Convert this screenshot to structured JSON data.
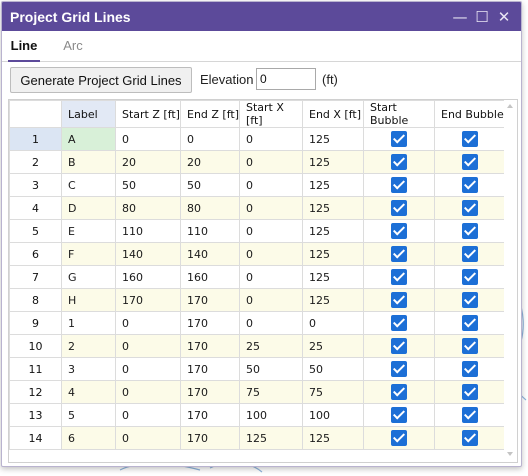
{
  "window": {
    "title": "Project Grid Lines",
    "controls": {
      "minimize": "—",
      "maximize": "☐",
      "close": "✕"
    }
  },
  "tabs": [
    {
      "label": "Line",
      "active": true
    },
    {
      "label": "Arc",
      "active": false
    }
  ],
  "toolbar": {
    "generate_label": "Generate Project Grid Lines",
    "elevation_label": "Elevation",
    "elevation_value": "0",
    "unit_label": "(ft)"
  },
  "grid": {
    "columns": [
      "Label",
      "Start Z [ft]",
      "End Z [ft]",
      "Start X [ft]",
      "End X [ft]",
      "Start Bubble",
      "End Bubble"
    ],
    "rows": [
      {
        "num": "1",
        "label": "A",
        "start_z": "0",
        "end_z": "0",
        "start_x": "0",
        "end_x": "125",
        "start_bubble": true,
        "end_bubble": true
      },
      {
        "num": "2",
        "label": "B",
        "start_z": "20",
        "end_z": "20",
        "start_x": "0",
        "end_x": "125",
        "start_bubble": true,
        "end_bubble": true
      },
      {
        "num": "3",
        "label": "C",
        "start_z": "50",
        "end_z": "50",
        "start_x": "0",
        "end_x": "125",
        "start_bubble": true,
        "end_bubble": true
      },
      {
        "num": "4",
        "label": "D",
        "start_z": "80",
        "end_z": "80",
        "start_x": "0",
        "end_x": "125",
        "start_bubble": true,
        "end_bubble": true
      },
      {
        "num": "5",
        "label": "E",
        "start_z": "110",
        "end_z": "110",
        "start_x": "0",
        "end_x": "125",
        "start_bubble": true,
        "end_bubble": true
      },
      {
        "num": "6",
        "label": "F",
        "start_z": "140",
        "end_z": "140",
        "start_x": "0",
        "end_x": "125",
        "start_bubble": true,
        "end_bubble": true
      },
      {
        "num": "7",
        "label": "G",
        "start_z": "160",
        "end_z": "160",
        "start_x": "0",
        "end_x": "125",
        "start_bubble": true,
        "end_bubble": true
      },
      {
        "num": "8",
        "label": "H",
        "start_z": "170",
        "end_z": "170",
        "start_x": "0",
        "end_x": "125",
        "start_bubble": true,
        "end_bubble": true
      },
      {
        "num": "9",
        "label": "1",
        "start_z": "0",
        "end_z": "170",
        "start_x": "0",
        "end_x": "0",
        "start_bubble": true,
        "end_bubble": true
      },
      {
        "num": "10",
        "label": "2",
        "start_z": "0",
        "end_z": "170",
        "start_x": "25",
        "end_x": "25",
        "start_bubble": true,
        "end_bubble": true
      },
      {
        "num": "11",
        "label": "3",
        "start_z": "0",
        "end_z": "170",
        "start_x": "50",
        "end_x": "50",
        "start_bubble": true,
        "end_bubble": true
      },
      {
        "num": "12",
        "label": "4",
        "start_z": "0",
        "end_z": "170",
        "start_x": "75",
        "end_x": "75",
        "start_bubble": true,
        "end_bubble": true
      },
      {
        "num": "13",
        "label": "5",
        "start_z": "0",
        "end_z": "170",
        "start_x": "100",
        "end_x": "100",
        "start_bubble": true,
        "end_bubble": true
      },
      {
        "num": "14",
        "label": "6",
        "start_z": "0",
        "end_z": "170",
        "start_x": "125",
        "end_x": "125",
        "start_bubble": true,
        "end_bubble": true
      }
    ]
  },
  "colors": {
    "titlebar": "#5c4a9a",
    "checkbox": "#1c6fd6",
    "alt_row": "#fcfbe8",
    "selected_label": "#d8f0d8"
  }
}
